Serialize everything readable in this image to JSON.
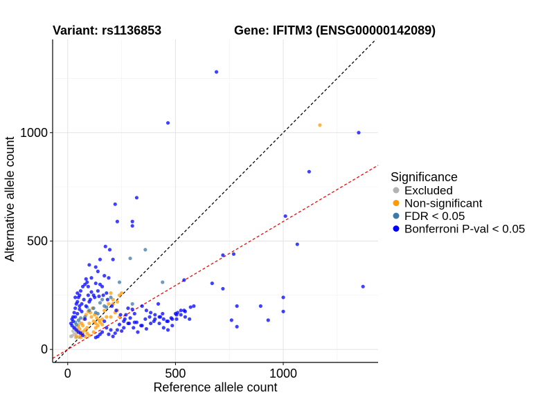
{
  "chart_data": {
    "type": "scatter",
    "title_left": "Variant: rs1136853",
    "title_right": "Gene: IFITM3 (ENSG00000142089)",
    "xlabel": "Reference allele count",
    "ylabel": "Alternative allele count",
    "xlim": [
      -70,
      1440
    ],
    "ylim": [
      -60,
      1430
    ],
    "xticks": [
      0,
      500,
      1000
    ],
    "yticks": [
      0,
      500,
      1000
    ],
    "grid": true,
    "legend": {
      "title": "Significance",
      "position": "right",
      "entries": [
        {
          "name": "Excluded",
          "color": "#b3b3b3"
        },
        {
          "name": "Non-significant",
          "color": "#ff9900"
        },
        {
          "name": "FDR < 0.05",
          "color": "#3c78a8"
        },
        {
          "name": "Bonferroni P-val < 0.05",
          "color": "#0000ff"
        }
      ]
    },
    "reference_lines": [
      {
        "name": "diagonal",
        "slope": 1.0,
        "intercept": 0,
        "color": "#000000",
        "dashed": true
      },
      {
        "name": "fitted",
        "slope": 0.59,
        "intercept": 0,
        "color": "#ff0000",
        "dashed": true
      }
    ],
    "series": [
      {
        "name": "Excluded",
        "color": "#b3b3b3",
        "points": [
          [
            15,
            60
          ],
          [
            20,
            62
          ],
          [
            25,
            85
          ],
          [
            30,
            70
          ],
          [
            35,
            95
          ],
          [
            40,
            75
          ],
          [
            45,
            105
          ],
          [
            50,
            58
          ],
          [
            55,
            125
          ],
          [
            60,
            80
          ],
          [
            38,
            55
          ],
          [
            28,
            100
          ]
        ]
      },
      {
        "name": "Non-significant",
        "color": "#ff9900",
        "points": [
          [
            1170,
            1035
          ],
          [
            230,
            180
          ],
          [
            240,
            250
          ],
          [
            200,
            260
          ],
          [
            210,
            230
          ],
          [
            190,
            210
          ],
          [
            180,
            150
          ],
          [
            170,
            180
          ],
          [
            160,
            140
          ],
          [
            150,
            125
          ],
          [
            140,
            110
          ],
          [
            130,
            100
          ],
          [
            120,
            130
          ],
          [
            110,
            150
          ],
          [
            100,
            120
          ],
          [
            90,
            100
          ],
          [
            80,
            90
          ],
          [
            70,
            80
          ],
          [
            60,
            70
          ],
          [
            55,
            95
          ],
          [
            50,
            110
          ],
          [
            45,
            85
          ],
          [
            40,
            60
          ],
          [
            65,
            120
          ],
          [
            75,
            140
          ],
          [
            85,
            160
          ],
          [
            95,
            175
          ],
          [
            105,
            170
          ],
          [
            115,
            190
          ],
          [
            125,
            160
          ],
          [
            135,
            145
          ],
          [
            145,
            135
          ],
          [
            160,
            115
          ],
          [
            200,
            150
          ],
          [
            220,
            170
          ],
          [
            210,
            210
          ],
          [
            230,
            220
          ],
          [
            240,
            150
          ],
          [
            250,
            260
          ],
          [
            100,
            65
          ],
          [
            90,
            75
          ],
          [
            70,
            110
          ],
          [
            80,
            60
          ],
          [
            120,
            80
          ],
          [
            60,
            55
          ],
          [
            130,
            120
          ]
        ]
      },
      {
        "name": "FDR < 0.05",
        "color": "#3c78a8",
        "points": [
          [
            290,
            420
          ],
          [
            360,
            460
          ],
          [
            440,
            310
          ],
          [
            240,
            310
          ],
          [
            300,
            210
          ],
          [
            200,
            240
          ],
          [
            180,
            195
          ],
          [
            170,
            200
          ],
          [
            160,
            230
          ],
          [
            150,
            215
          ],
          [
            140,
            165
          ],
          [
            130,
            170
          ],
          [
            120,
            190
          ],
          [
            100,
            180
          ],
          [
            90,
            195
          ],
          [
            80,
            150
          ],
          [
            60,
            145
          ],
          [
            50,
            135
          ],
          [
            40,
            115
          ],
          [
            35,
            125
          ]
        ]
      },
      {
        "name": "Bonferroni P-val < 0.05",
        "color": "#0000ff",
        "points": [
          [
            690,
            1280
          ],
          [
            465,
            1045
          ],
          [
            1350,
            1000
          ],
          [
            1120,
            820
          ],
          [
            1010,
            615
          ],
          [
            1065,
            485
          ],
          [
            770,
            440
          ],
          [
            720,
            435
          ],
          [
            1370,
            290
          ],
          [
            1000,
            240
          ],
          [
            895,
            200
          ],
          [
            1000,
            175
          ],
          [
            930,
            135
          ],
          [
            785,
            200
          ],
          [
            760,
            135
          ],
          [
            785,
            105
          ],
          [
            720,
            280
          ],
          [
            670,
            305
          ],
          [
            540,
            320
          ],
          [
            570,
            195
          ],
          [
            540,
            180
          ],
          [
            510,
            170
          ],
          [
            500,
            165
          ],
          [
            480,
            145
          ],
          [
            460,
            130
          ],
          [
            440,
            165
          ],
          [
            430,
            150
          ],
          [
            420,
            210
          ],
          [
            400,
            130
          ],
          [
            380,
            150
          ],
          [
            360,
            140
          ],
          [
            340,
            110
          ],
          [
            320,
            125
          ],
          [
            310,
            165
          ],
          [
            300,
            185
          ],
          [
            290,
            145
          ],
          [
            280,
            120
          ],
          [
            270,
            160
          ],
          [
            260,
            100
          ],
          [
            250,
            85
          ],
          [
            240,
            115
          ],
          [
            230,
            90
          ],
          [
            220,
            75
          ],
          [
            210,
            60
          ],
          [
            200,
            90
          ],
          [
            190,
            70
          ],
          [
            180,
            100
          ],
          [
            170,
            130
          ],
          [
            160,
            80
          ],
          [
            150,
            70
          ],
          [
            140,
            60
          ],
          [
            130,
            55
          ],
          [
            260,
            130
          ],
          [
            280,
            190
          ],
          [
            310,
            125
          ],
          [
            320,
            700
          ],
          [
            300,
            590
          ],
          [
            300,
            570
          ],
          [
            220,
            670
          ],
          [
            230,
            590
          ],
          [
            210,
            415
          ],
          [
            195,
            460
          ],
          [
            175,
            475
          ],
          [
            150,
            415
          ],
          [
            140,
            360
          ],
          [
            130,
            380
          ],
          [
            110,
            330
          ],
          [
            100,
            390
          ],
          [
            95,
            290
          ],
          [
            90,
            310
          ],
          [
            85,
            325
          ],
          [
            80,
            300
          ],
          [
            70,
            290
          ],
          [
            60,
            270
          ],
          [
            55,
            250
          ],
          [
            50,
            240
          ],
          [
            45,
            220
          ],
          [
            40,
            210
          ],
          [
            35,
            190
          ],
          [
            30,
            170
          ],
          [
            25,
            150
          ],
          [
            20,
            140
          ],
          [
            15,
            120
          ],
          [
            30,
            100
          ],
          [
            40,
            90
          ],
          [
            50,
            80
          ],
          [
            60,
            75
          ],
          [
            70,
            65
          ],
          [
            80,
            140
          ],
          [
            100,
            220
          ],
          [
            120,
            250
          ],
          [
            140,
            270
          ],
          [
            160,
            290
          ],
          [
            180,
            260
          ],
          [
            190,
            330
          ],
          [
            170,
            340
          ],
          [
            150,
            300
          ],
          [
            130,
            305
          ],
          [
            110,
            265
          ],
          [
            95,
            250
          ],
          [
            75,
            230
          ],
          [
            65,
            210
          ],
          [
            55,
            185
          ],
          [
            45,
            165
          ],
          [
            35,
            150
          ],
          [
            25,
            130
          ],
          [
            20,
            110
          ],
          [
            35,
            240
          ],
          [
            45,
            260
          ],
          [
            55,
            200
          ],
          [
            65,
            175
          ],
          [
            85,
            200
          ],
          [
            105,
            230
          ],
          [
            125,
            240
          ],
          [
            145,
            245
          ],
          [
            165,
            250
          ],
          [
            185,
            230
          ],
          [
            205,
            200
          ],
          [
            225,
            180
          ],
          [
            245,
            160
          ],
          [
            265,
            140
          ],
          [
            285,
            120
          ],
          [
            305,
            100
          ],
          [
            325,
            80
          ],
          [
            345,
            110
          ],
          [
            365,
            95
          ],
          [
            385,
            120
          ],
          [
            405,
            140
          ],
          [
            425,
            120
          ],
          [
            445,
            100
          ],
          [
            465,
            90
          ],
          [
            485,
            110
          ],
          [
            505,
            140
          ],
          [
            525,
            160
          ],
          [
            545,
            150
          ],
          [
            565,
            140
          ],
          [
            585,
            200
          ],
          [
            345,
            200
          ],
          [
            365,
            180
          ],
          [
            385,
            170
          ],
          [
            405,
            160
          ],
          [
            425,
            150
          ],
          [
            445,
            140
          ],
          [
            465,
            130
          ],
          [
            485,
            140
          ],
          [
            505,
            160
          ],
          [
            525,
            180
          ],
          [
            545,
            175
          ]
        ]
      }
    ]
  }
}
